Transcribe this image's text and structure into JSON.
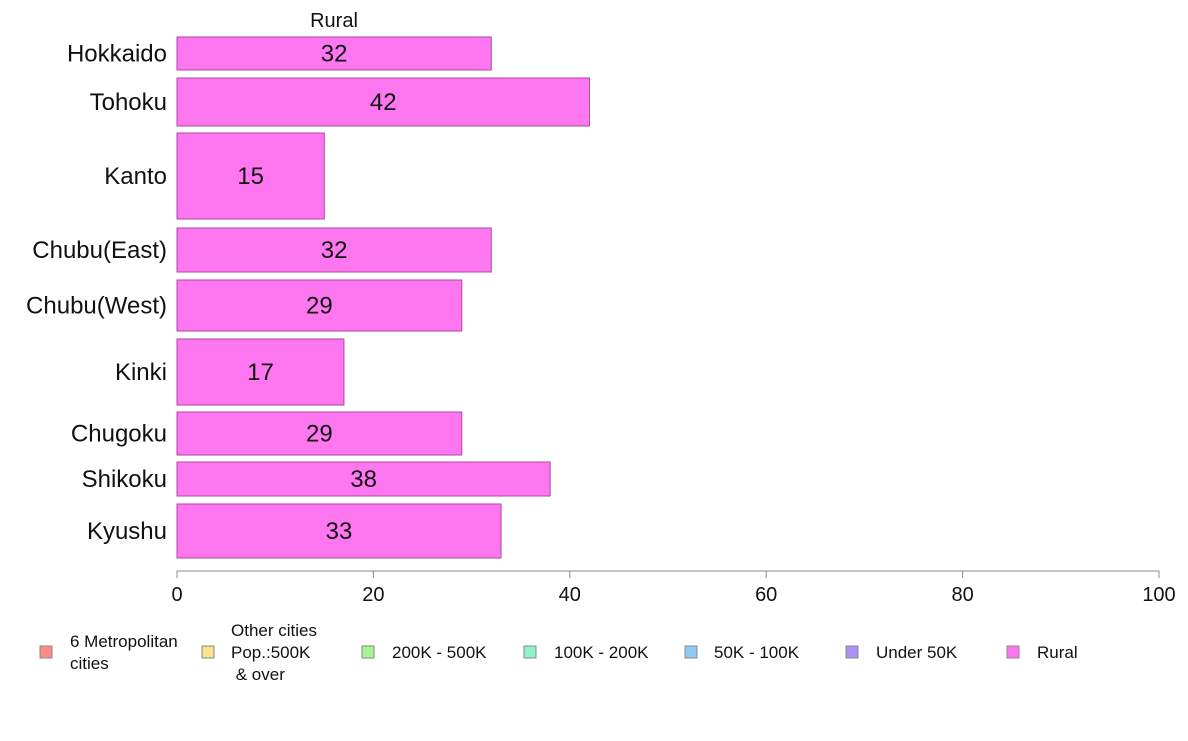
{
  "chart_data": {
    "type": "bar",
    "orientation": "horizontal",
    "title": "Rural",
    "xlabel": "",
    "ylabel": "",
    "xlim": [
      0,
      100
    ],
    "x_ticks": [
      0,
      20,
      40,
      60,
      80,
      100
    ],
    "grid": false,
    "categories": [
      "Hokkaido",
      "Tohoku",
      "Kanto",
      "Chubu(East)",
      "Chubu(West)",
      "Kinki",
      "Chugoku",
      "Shikoku",
      "Kyushu"
    ],
    "series": [
      {
        "name": "Rural",
        "color": "#ff77f0",
        "values": [
          32,
          42,
          15,
          32,
          29,
          17,
          29,
          38,
          33
        ]
      }
    ],
    "data_labels": [
      "32",
      "42",
      "15",
      "32",
      "29",
      "17",
      "29",
      "38",
      "33"
    ],
    "legend": {
      "placement": "bottom",
      "entries": [
        {
          "label": "6 Metropolitan\ncities",
          "color": "#fb8d86"
        },
        {
          "label": "Other cities\nPop.:500K\n & over",
          "color": "#f9e38b"
        },
        {
          "label": "200K - 500K",
          "color": "#a6f58e"
        },
        {
          "label": "100K - 200K",
          "color": "#8ff3c8"
        },
        {
          "label": "50K - 100K",
          "color": "#8fcaf7"
        },
        {
          "label": "Under 50K",
          "color": "#b08ff5"
        },
        {
          "label": "Rural",
          "color": "#ff77f0"
        }
      ]
    }
  }
}
